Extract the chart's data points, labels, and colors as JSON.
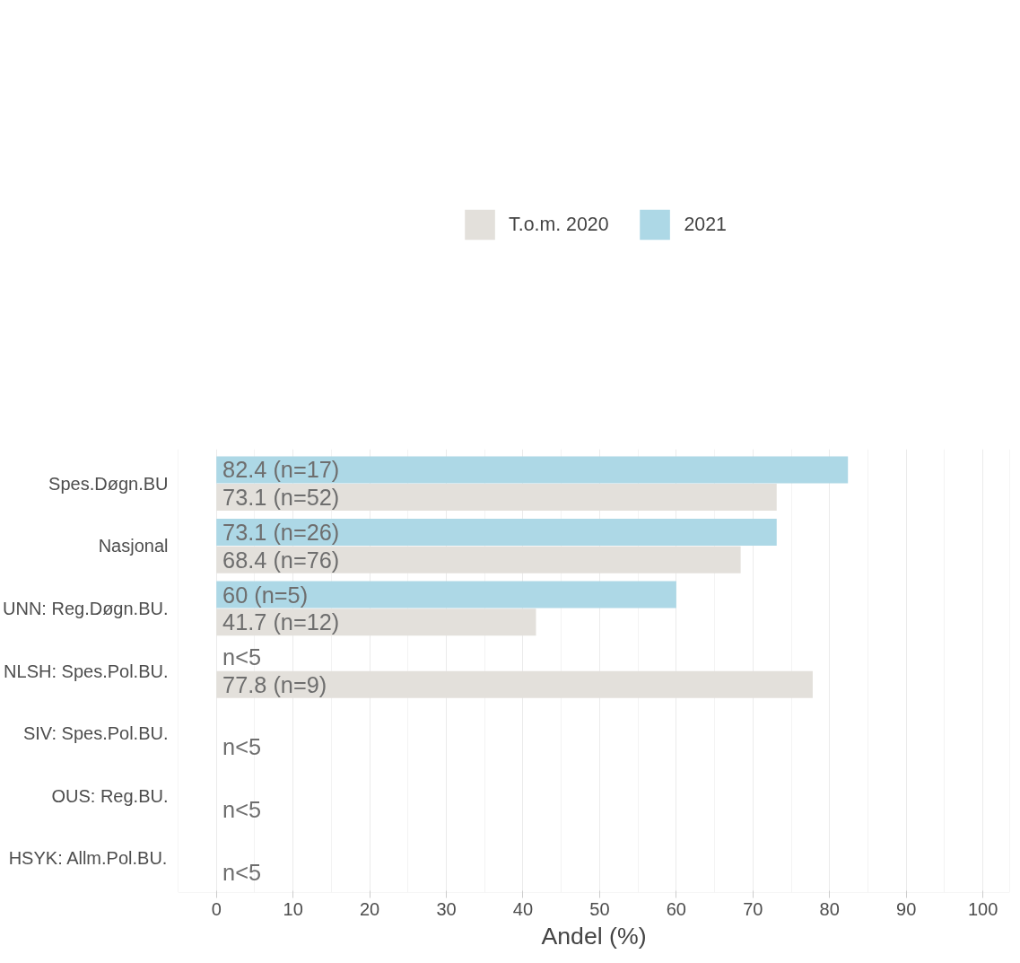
{
  "chart_data": {
    "type": "bar",
    "orientation": "horizontal",
    "xlabel": "Andel (%)",
    "categories": [
      "Spes.Døgn.BU",
      "Nasjonal",
      "UNN: Reg.Døgn.BU.",
      "NLSH: Spes.Pol.BU.",
      "SIV: Spes.Pol.BU.",
      "OUS: Reg.BU.",
      "HSYK: Allm.Pol.BU."
    ],
    "series": [
      {
        "name": "2021",
        "color": "#add8e6",
        "values": [
          82.4,
          73.1,
          60,
          null,
          null,
          null,
          null
        ],
        "value_labels": [
          "82.4 (n=17)",
          "73.1 (n=26)",
          "60 (n=5)",
          "n<5",
          null,
          null,
          null
        ]
      },
      {
        "name": "T.o.m. 2020",
        "color": "#e3e0db",
        "values": [
          73.1,
          68.4,
          41.7,
          77.8,
          null,
          null,
          null
        ],
        "value_labels": [
          "73.1 (n=52)",
          "68.4 (n=76)",
          "41.7 (n=12)",
          "77.8 (n=9)",
          "n<5",
          "n<5",
          "n<5"
        ]
      }
    ],
    "xlim": [
      -5,
      103.5
    ],
    "xticks": [
      0,
      10,
      20,
      30,
      40,
      50,
      60,
      70,
      80,
      90,
      100
    ],
    "grid": "x",
    "legend": "top"
  }
}
